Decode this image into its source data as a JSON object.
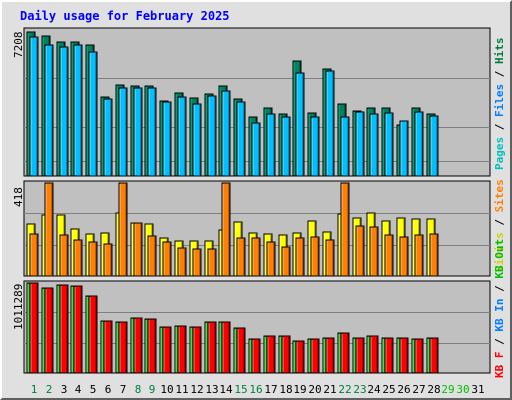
{
  "title": "Daily usage for February 2025",
  "colors": {
    "pages": "#00c0c0",
    "files": "#0080ff",
    "hits": "#008040",
    "visits": "#ffff00",
    "sites": "#ff8000",
    "kbin": "#00c000",
    "kbout": "#ff0000",
    "kbf": "#ff0000",
    "weekend": "#008040",
    "weekday": "#000000",
    "empty": "#00c000"
  },
  "side_labels": {
    "hits_panel": [
      {
        "text": "Pages",
        "color": "#00c0c0"
      },
      {
        "text": " / ",
        "color": "#000000"
      },
      {
        "text": "Files",
        "color": "#0080ff"
      },
      {
        "text": " / ",
        "color": "#000000"
      },
      {
        "text": "Hits",
        "color": "#008040"
      }
    ],
    "visits_panel": [
      {
        "text": "Visits",
        "color": "#d0d000"
      },
      {
        "text": " / ",
        "color": "#000000"
      },
      {
        "text": "Sites",
        "color": "#ff8000"
      }
    ],
    "kb_panel": [
      {
        "text": "KB F",
        "color": "#ff0000"
      },
      {
        "text": " / ",
        "color": "#000000"
      },
      {
        "text": "KB In",
        "color": "#0080ff"
      },
      {
        "text": " / ",
        "color": "#000000"
      },
      {
        "text": "KB Out",
        "color": "#00c000"
      }
    ]
  },
  "chart_data": [
    {
      "type": "bar",
      "panel": "hits",
      "ymax_label": "7208",
      "ylim": [
        0,
        7208
      ],
      "x": [
        1,
        2,
        3,
        4,
        5,
        6,
        7,
        8,
        9,
        10,
        11,
        12,
        13,
        14,
        15,
        16,
        17,
        18,
        19,
        20,
        21,
        22,
        23,
        24,
        25,
        26,
        27,
        28
      ],
      "series": [
        {
          "name": "Hits",
          "values": [
            7100,
            6935,
            6595,
            6620,
            6460,
            3910,
            4500,
            4425,
            4450,
            3725,
            4120,
            3850,
            4050,
            4450,
            3810,
            2900,
            3350,
            3070,
            5660,
            3090,
            5270,
            3560,
            3200,
            3375,
            3380,
            2540,
            3375,
            3050
          ]
        },
        {
          "name": "Files",
          "values": [
            6870,
            6480,
            6385,
            6470,
            6140,
            3810,
            4360,
            4330,
            4330,
            3630,
            3880,
            3560,
            3930,
            4200,
            3630,
            2630,
            3080,
            2920,
            5070,
            2920,
            5200,
            2910,
            3170,
            3060,
            3100,
            2730,
            3140,
            2960
          ]
        }
      ]
    },
    {
      "type": "bar",
      "panel": "visits",
      "ymax_label": "418",
      "ylim": [
        0,
        418
      ],
      "x": [
        1,
        2,
        3,
        4,
        5,
        6,
        7,
        8,
        9,
        10,
        11,
        12,
        13,
        14,
        15,
        16,
        17,
        18,
        19,
        20,
        21,
        22,
        23,
        24,
        25,
        26,
        27,
        28
      ],
      "series": [
        {
          "name": "Visits",
          "values": [
            233,
            275,
            275,
            213,
            190,
            193,
            285,
            238,
            235,
            170,
            157,
            157,
            158,
            205,
            243,
            195,
            190,
            185,
            195,
            248,
            200,
            278,
            260,
            285,
            248,
            260,
            255,
            255
          ]
        },
        {
          "name": "Sites",
          "values": [
            190,
            418,
            183,
            160,
            153,
            143,
            418,
            238,
            180,
            153,
            128,
            123,
            120,
            418,
            173,
            170,
            153,
            130,
            170,
            175,
            163,
            418,
            223,
            220,
            183,
            175,
            183,
            190
          ]
        }
      ]
    },
    {
      "type": "bar",
      "panel": "kbytes",
      "ymax_label": "1011289",
      "ylim": [
        0,
        1011289
      ],
      "x": [
        1,
        2,
        3,
        4,
        5,
        6,
        7,
        8,
        9,
        10,
        11,
        12,
        13,
        14,
        15,
        16,
        17,
        18,
        19,
        20,
        21,
        22,
        23,
        24,
        25,
        26,
        27,
        28
      ],
      "series": [
        {
          "name": "KB In",
          "values": [
            1011289,
            960000,
            986000,
            973000,
            863000,
            580000,
            578000,
            614000,
            610000,
            522000,
            532000,
            514000,
            576000,
            570000,
            511000,
            380000,
            420000,
            417000,
            364000,
            384000,
            388000,
            444000,
            390000,
            414000,
            393000,
            391000,
            383000,
            389000
          ]
        },
        {
          "name": "KB F",
          "values": [
            1011289,
            960000,
            986000,
            973000,
            863000,
            580000,
            578000,
            614000,
            610000,
            522000,
            532000,
            514000,
            576000,
            570000,
            511000,
            380000,
            420000,
            417000,
            364000,
            384000,
            388000,
            444000,
            390000,
            414000,
            393000,
            391000,
            383000,
            389000
          ]
        }
      ]
    }
  ],
  "days": [
    "1",
    "2",
    "3",
    "4",
    "5",
    "6",
    "7",
    "8",
    "9",
    "10",
    "11",
    "12",
    "13",
    "14",
    "15",
    "16",
    "17",
    "18",
    "19",
    "20",
    "21",
    "22",
    "23",
    "24",
    "25",
    "26",
    "27",
    "28",
    "29",
    "30",
    "31"
  ],
  "weekend_days": [
    1,
    2,
    8,
    9,
    15,
    16,
    22,
    23,
    29,
    30
  ]
}
